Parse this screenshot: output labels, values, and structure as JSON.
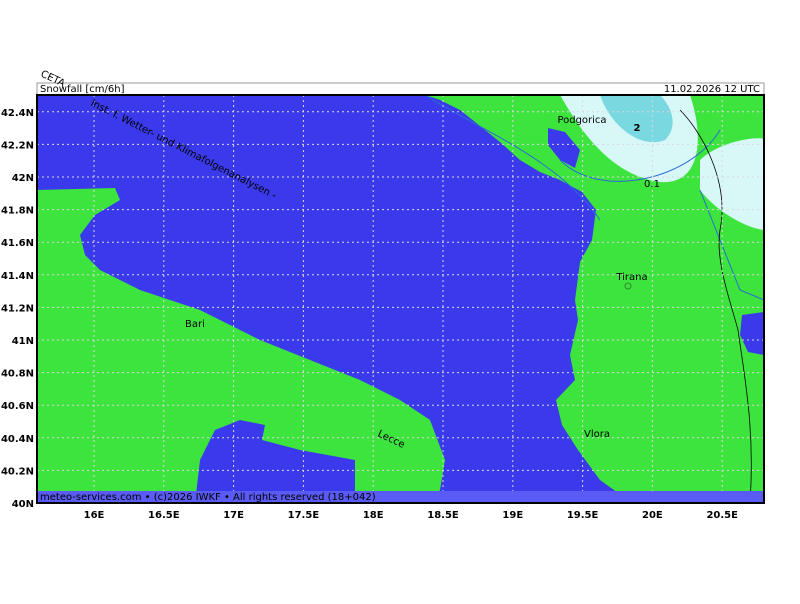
{
  "header": {
    "product": "Snowfall [cm/6h]",
    "valid_time": "11.02.2026 12 UTC",
    "model": "CETA"
  },
  "watermark": "Inst. f. Wetter- und Klimafolgenanalysen -",
  "footer": "meteo-services.com • (c)2026 IWKF • All rights reserved (18+042)",
  "axes": {
    "y_ticks": [
      "40N",
      "40.2N",
      "40.4N",
      "40.6N",
      "40.8N",
      "41N",
      "41.2N",
      "41.4N",
      "41.6N",
      "41.8N",
      "42N",
      "42.2N",
      "42.4N"
    ],
    "x_ticks": [
      "16E",
      "16.5E",
      "17E",
      "17.5E",
      "18E",
      "18.5E",
      "19E",
      "19.5E",
      "20E",
      "20.5E"
    ]
  },
  "cities": [
    "Podgorica",
    "Tirana",
    "Bari",
    "Lecce",
    "Vlora"
  ],
  "contour_labels": [
    "2",
    "0.1"
  ]
}
